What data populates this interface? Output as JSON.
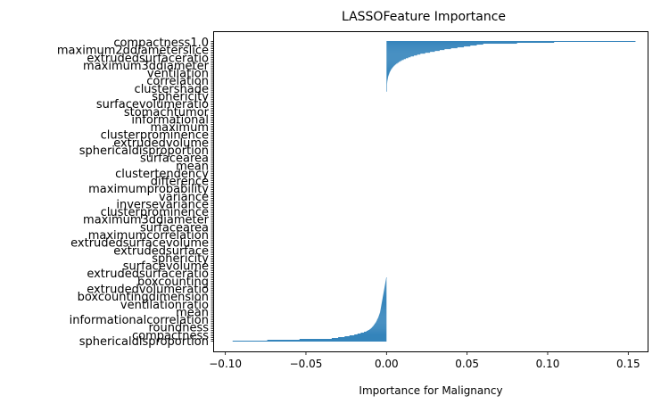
{
  "chart_data": {
    "type": "bar",
    "orientation": "horizontal",
    "title": "LASSOFeature Importance",
    "xlabel": "Importance for Malignancy",
    "ylabel": "",
    "xlim": [
      -0.107,
      0.162
    ],
    "xticks": [
      -0.1,
      -0.05,
      0.0,
      0.05,
      0.1,
      0.15
    ],
    "xtick_labels": [
      "−0.10",
      "−0.05",
      "0.00",
      "0.05",
      "0.10",
      "0.15"
    ],
    "bar_color": "#1f77b4",
    "grid": false,
    "legend": "none",
    "feature_count": 333,
    "positive_values": [
      0.1545,
      0.104,
      0.081,
      0.06,
      0.056,
      0.052,
      0.048,
      0.044,
      0.04,
      0.036,
      0.033,
      0.03,
      0.027,
      0.024,
      0.021,
      0.019,
      0.017,
      0.015,
      0.0135,
      0.012,
      0.0107,
      0.0095,
      0.0085,
      0.0076,
      0.0068,
      0.006,
      0.0053,
      0.0047,
      0.0042,
      0.0037,
      0.0033,
      0.0029,
      0.0026,
      0.0023,
      0.002,
      0.0018,
      0.0016,
      0.0014,
      0.0012,
      0.001,
      0.0009,
      0.0008,
      0.0007,
      0.0006,
      0.0005,
      0.00045,
      0.0004,
      0.00035,
      0.0003,
      0.00025,
      0.0002,
      0.00016,
      0.00012,
      0.0001,
      8e-05,
      6e-05
    ],
    "negative_values": [
      -0.0002,
      -0.0003,
      -0.0004,
      -0.0005,
      -0.0006,
      -0.0007,
      -0.0008,
      -0.0009,
      -0.001,
      -0.0011,
      -0.0012,
      -0.0013,
      -0.0014,
      -0.0015,
      -0.0016,
      -0.0017,
      -0.0018,
      -0.0019,
      -0.002,
      -0.0021,
      -0.0022,
      -0.0023,
      -0.0024,
      -0.0025,
      -0.0026,
      -0.0027,
      -0.0028,
      -0.0029,
      -0.003,
      -0.0031,
      -0.0032,
      -0.0033,
      -0.0034,
      -0.0035,
      -0.0036,
      -0.0037,
      -0.0038,
      -0.0039,
      -0.004,
      -0.0042,
      -0.0044,
      -0.0046,
      -0.0048,
      -0.005,
      -0.0052,
      -0.0055,
      -0.0058,
      -0.006,
      -0.0063,
      -0.0066,
      -0.007,
      -0.0074,
      -0.0078,
      -0.0082,
      -0.0087,
      -0.0092,
      -0.0098,
      -0.0105,
      -0.0115,
      -0.0125,
      -0.014,
      -0.016,
      -0.018,
      -0.02,
      -0.023,
      -0.026,
      -0.03,
      -0.034,
      -0.054,
      -0.074,
      -0.0955
    ],
    "visible_feature_labels": [
      "compactness1.0",
      "maximum2ddiameterslice",
      "extrudedsurfaceratio",
      "maximum3ddiameter",
      "ventilation",
      "correlation",
      "clustershade",
      "sphericity",
      "surfacevolumeratio",
      "stomachtumor",
      "informational",
      "maximum",
      "clusterprominence",
      "extrudedvolume",
      "sphericaldisproportion",
      "surfacearea",
      "mean",
      "clustertendency",
      "difference",
      "maximumprobability",
      "variance",
      "inversevariance",
      "clusterprominence",
      "maximum3ddiameter",
      "surfacearea",
      "maximumcorrelation",
      "extrudedsurfacevolume",
      "extrudedsurface",
      "sphericity",
      "surfacevolume",
      "extrudedsurfaceratio",
      "boxcounting",
      "extrudedvolumeratio",
      "boxcountingdimension",
      "ventilationratio",
      "mean",
      "informationalcorrelation",
      "roundness",
      "compactness",
      "sphericaldisproportion"
    ]
  }
}
